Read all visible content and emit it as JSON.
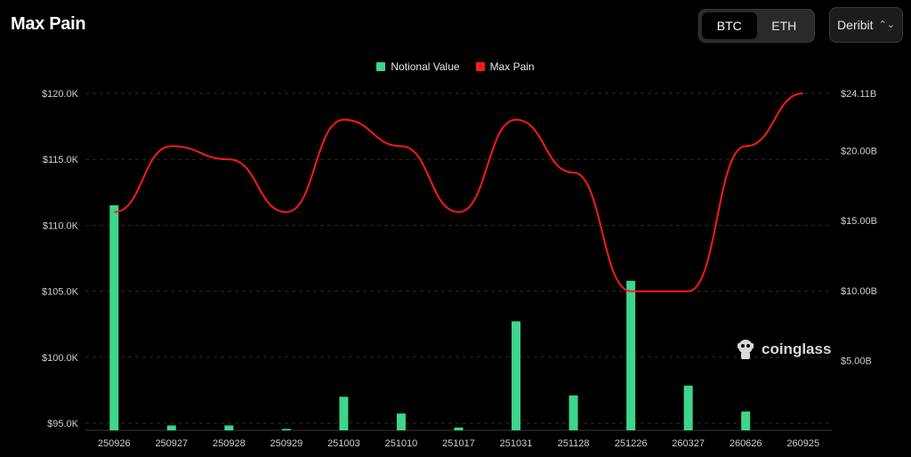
{
  "header": {
    "title": "Max Pain",
    "asset_tabs": [
      {
        "label": "BTC",
        "active": true
      },
      {
        "label": "ETH",
        "active": false
      }
    ],
    "exchange": "Deribit"
  },
  "watermark": "coinglass",
  "chart_data": {
    "type": "bar+line",
    "categories": [
      "250926",
      "250927",
      "250928",
      "250929",
      "251003",
      "251010",
      "251017",
      "251031",
      "251128",
      "251226",
      "260327",
      "260626",
      "260925"
    ],
    "series": [
      {
        "name": "Notional Value",
        "type": "bar",
        "axis": "right",
        "color": "#3dd68c",
        "values": [
          16.1,
          0.35,
          0.35,
          0.1,
          2.4,
          1.2,
          0.2,
          7.8,
          2.5,
          10.7,
          3.2,
          1.35,
          null
        ]
      },
      {
        "name": "Max Pain",
        "type": "line",
        "axis": "left",
        "color": "#ff1a1a",
        "values": [
          111000,
          116000,
          115000,
          111000,
          118000,
          116000,
          111000,
          118000,
          114000,
          105000,
          105000,
          116000,
          120000
        ]
      }
    ],
    "left_axis": {
      "min": 94500,
      "max": 120000,
      "ticks": [
        120000,
        115000,
        110000,
        105000,
        100000,
        95000
      ],
      "tick_labels": [
        "$120.0K",
        "$115.0K",
        "$110.0K",
        "$105.0K",
        "$100.0K",
        "$95.0K"
      ]
    },
    "right_axis": {
      "min": 0,
      "max": 24.11,
      "ticks": [
        24.11,
        20,
        15,
        10,
        5
      ],
      "tick_labels": [
        "$24.11B",
        "$20.00B",
        "$15.00B",
        "$10.00B",
        "$5.00B"
      ]
    },
    "grid": true,
    "legend_position": "top-center"
  }
}
